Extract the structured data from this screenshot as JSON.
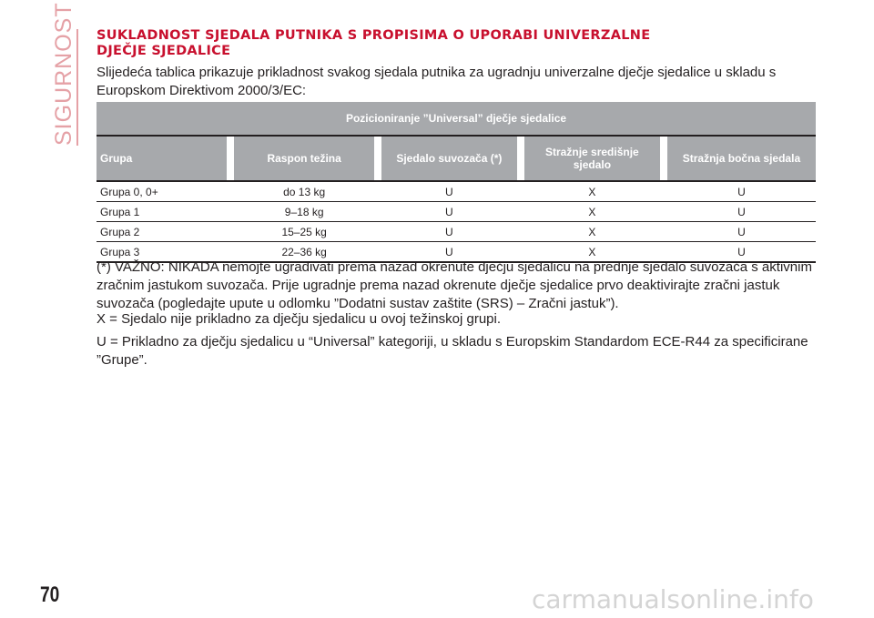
{
  "side_label": "SIGURNOST",
  "heading": {
    "line1": "SUKLADNOST SJEDALA PUTNIKA S PROPISIMA O UPORABI UNIVERZALNE",
    "line2": "DJEČJE SJEDALICE"
  },
  "intro": "Slijedeća tablica prikazuje prikladnost svakog sjedala putnika za ugradnju univerzalne dječje sjedalice u skladu s Europskom Direktivom 2000/3/EC:",
  "table": {
    "caption": "Pozicioniranje ”Universal” dječje sjedalice",
    "headers": [
      "Grupa",
      "Raspon težina",
      "Sjedalo suvozača (*)",
      "Stražnje središnje sjedalo",
      "Stražnja bočna sjedala"
    ],
    "rows": [
      [
        "Grupa 0, 0+",
        "do 13 kg",
        "U",
        "X",
        "U"
      ],
      [
        "Grupa 1",
        "9–18 kg",
        "U",
        "X",
        "U"
      ],
      [
        "Grupa 2",
        "15–25 kg",
        "U",
        "X",
        "U"
      ],
      [
        "Grupa 3",
        "22–36 kg",
        "U",
        "X",
        "U"
      ]
    ]
  },
  "notes": {
    "warning": "(*) VAŽNO: NIKADA nemojte ugrađivati prema nazad okrenute dječju sjedalicu na prednje sjedalo suvozača s aktivnim zračnim jastukom suvozača. Prije ugradnje prema nazad okrenute dječje sjedalice prvo deaktivirajte zračni jastuk suvozača (pogledajte upute u odlomku ”Dodatni sustav zaštite (SRS) – Zračni jastuk”).",
    "x_note": "X = Sjedalo nije prikladno za dječju sjedalicu u ovoj težinskoj grupi.",
    "u_note": "U = Prikladno za dječju sjedalicu u “Universal” kategoriji, u skladu s Europskim Standardom ECE-R44 za specificirane ”Grupe”."
  },
  "page_number": "70",
  "watermark": "carmanualsonline.info",
  "colors": {
    "heading": "#c8102e",
    "side_label": "#e5a1a6",
    "table_header": "#a7a9ac"
  }
}
